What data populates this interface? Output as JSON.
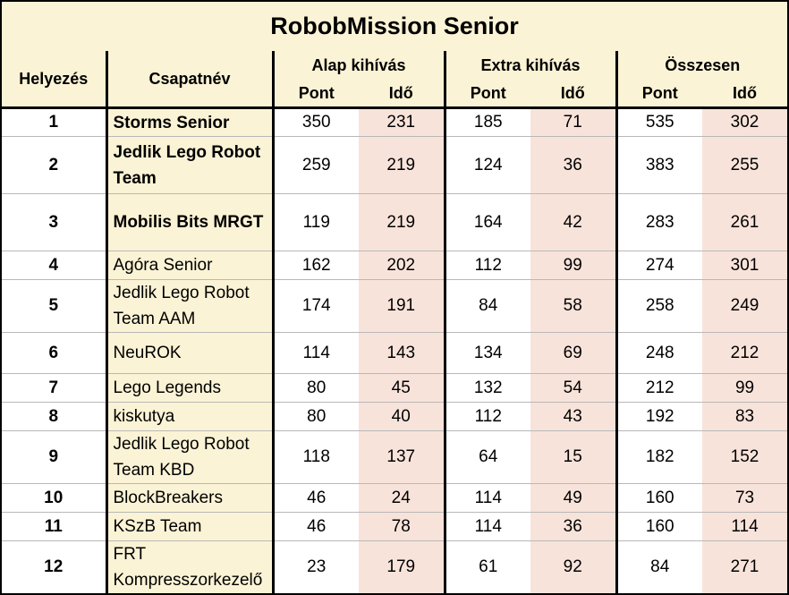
{
  "title": "RobobMission Senior",
  "headers": {
    "rank": "Helyezés",
    "team": "Csapatnév",
    "groups": [
      "Alap kihívás",
      "Extra kihívás",
      "Összesen"
    ],
    "pont": "Pont",
    "ido": "Idő"
  },
  "rows": [
    {
      "rank": "1",
      "team": "Storms Senior",
      "bold": true,
      "a_p": "350",
      "a_i": "231",
      "e_p": "185",
      "e_i": "71",
      "o_p": "535",
      "o_i": "302"
    },
    {
      "rank": "2",
      "team": "Jedlik Lego Robot Team",
      "bold": true,
      "a_p": "259",
      "a_i": "219",
      "e_p": "124",
      "e_i": "36",
      "o_p": "383",
      "o_i": "255"
    },
    {
      "rank": "3",
      "team": "Mobilis Bits MRGT",
      "bold": true,
      "a_p": "119",
      "a_i": "219",
      "e_p": "164",
      "e_i": "42",
      "o_p": "283",
      "o_i": "261"
    },
    {
      "rank": "4",
      "team": "Agóra Senior",
      "bold": false,
      "a_p": "162",
      "a_i": "202",
      "e_p": "112",
      "e_i": "99",
      "o_p": "274",
      "o_i": "301"
    },
    {
      "rank": "5",
      "team": "Jedlik Lego Robot Team AAM",
      "bold": false,
      "a_p": "174",
      "a_i": "191",
      "e_p": "84",
      "e_i": "58",
      "o_p": "258",
      "o_i": "249"
    },
    {
      "rank": "6",
      "team": "NeuROK",
      "bold": false,
      "a_p": "114",
      "a_i": "143",
      "e_p": "134",
      "e_i": "69",
      "o_p": "248",
      "o_i": "212"
    },
    {
      "rank": "7",
      "team": "Lego Legends",
      "bold": false,
      "a_p": "80",
      "a_i": "45",
      "e_p": "132",
      "e_i": "54",
      "o_p": "212",
      "o_i": "99"
    },
    {
      "rank": "8",
      "team": "kiskutya",
      "bold": false,
      "a_p": "80",
      "a_i": "40",
      "e_p": "112",
      "e_i": "43",
      "o_p": "192",
      "o_i": "83"
    },
    {
      "rank": "9",
      "team": "Jedlik Lego Robot Team KBD",
      "bold": false,
      "a_p": "118",
      "a_i": "137",
      "e_p": "64",
      "e_i": "15",
      "o_p": "182",
      "o_i": "152"
    },
    {
      "rank": "10",
      "team": "BlockBreakers",
      "bold": false,
      "a_p": "46",
      "a_i": "24",
      "e_p": "114",
      "e_i": "49",
      "o_p": "160",
      "o_i": "73"
    },
    {
      "rank": "11",
      "team": "KSzB Team",
      "bold": false,
      "a_p": "46",
      "a_i": "78",
      "e_p": "114",
      "e_i": "36",
      "o_p": "160",
      "o_i": "114"
    },
    {
      "rank": "12",
      "team": "FRT Kompresszorkezelő",
      "bold": false,
      "a_p": "23",
      "a_i": "179",
      "e_p": "61",
      "e_i": "92",
      "o_p": "84",
      "o_i": "271"
    }
  ],
  "colors": {
    "header_bg": "#fbf3d5",
    "ido_bg": "#f8e3da"
  }
}
